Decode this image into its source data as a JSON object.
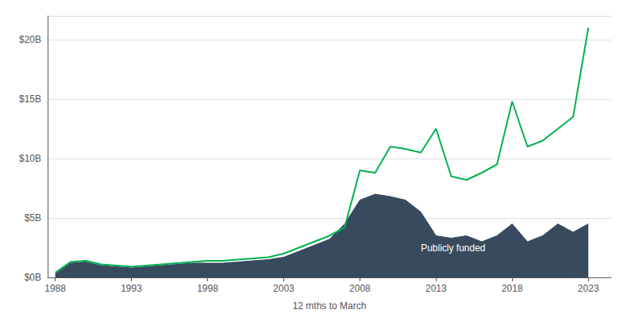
{
  "chart_data": {
    "type": "line",
    "xlabel": "12 mths to March",
    "x": [
      1988,
      1989,
      1990,
      1991,
      1992,
      1993,
      1994,
      1995,
      1996,
      1997,
      1998,
      1999,
      2000,
      2001,
      2002,
      2003,
      2004,
      2005,
      2006,
      2007,
      2008,
      2009,
      2010,
      2011,
      2012,
      2013,
      2014,
      2015,
      2016,
      2017,
      2018,
      2019,
      2020,
      2021,
      2022,
      2023
    ],
    "series": [
      {
        "type": "area",
        "color": "#374a5e",
        "values": [
          0.3,
          1.2,
          1.3,
          1.0,
          0.9,
          0.8,
          0.9,
          1.0,
          1.1,
          1.2,
          1.2,
          1.2,
          1.3,
          1.4,
          1.5,
          1.7,
          2.2,
          2.7,
          3.2,
          4.5,
          6.5,
          7.0,
          6.8,
          6.5,
          5.5,
          3.5,
          3.3,
          3.5,
          3.0,
          3.5,
          4.5,
          3.0,
          3.5,
          4.5,
          3.8,
          4.5
        ]
      },
      {
        "type": "line",
        "color": "#00b050",
        "values": [
          0.4,
          1.3,
          1.4,
          1.1,
          1.0,
          0.9,
          1.0,
          1.1,
          1.2,
          1.3,
          1.4,
          1.4,
          1.5,
          1.6,
          1.7,
          2.0,
          2.5,
          3.0,
          3.5,
          4.2,
          9.0,
          8.8,
          11.0,
          10.8,
          10.5,
          12.5,
          8.5,
          8.2,
          8.8,
          9.5,
          14.8,
          11.0,
          11.5,
          12.5,
          13.5,
          21.0
        ]
      }
    ],
    "annotations": [
      {
        "text": "Publicly funded",
        "x": 2012,
        "y": 2.5,
        "color": "#ffffff"
      }
    ],
    "xlim": [
      1987.5,
      2024.5
    ],
    "xticks": [
      1988,
      1993,
      1998,
      2003,
      2008,
      2013,
      2018,
      2023
    ],
    "ylim": [
      0,
      22
    ],
    "yticks": [
      {
        "value": 0,
        "label": "$0B"
      },
      {
        "value": 5,
        "label": "$5B"
      },
      {
        "value": 10,
        "label": "$10B"
      },
      {
        "value": 15,
        "label": "$15B"
      },
      {
        "value": 20,
        "label": "$20B"
      }
    ],
    "grid": true,
    "legend": false
  }
}
